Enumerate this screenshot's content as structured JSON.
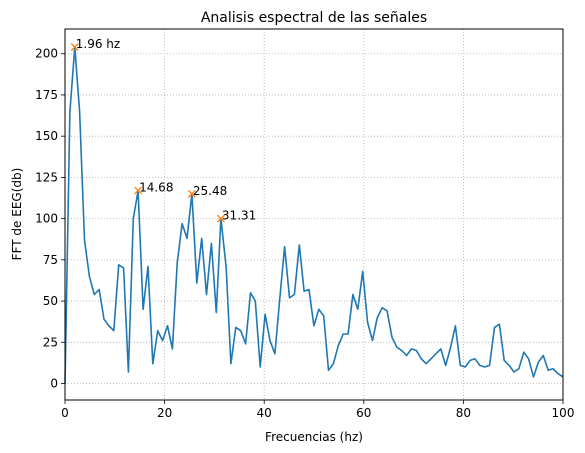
{
  "chart_data": {
    "type": "line",
    "title": "Analisis espectral de las señales",
    "xlabel": "Frecuencias (hz)",
    "ylabel": "FFT de EEG(db)",
    "xlim": [
      0,
      100
    ],
    "ylim": [
      -10,
      215
    ],
    "xticks": [
      "0",
      "20",
      "40",
      "60",
      "80",
      "100"
    ],
    "yticks": [
      "0",
      "25",
      "50",
      "75",
      "100",
      "125",
      "150",
      "175",
      "200"
    ],
    "grid": true,
    "line_color": "#1f77b4",
    "marker_color": "#ff7f0e",
    "series": [
      {
        "x": [
          0,
          0.98,
          1.96,
          2.94,
          3.92,
          4.9,
          5.88,
          6.86,
          7.84,
          8.82,
          9.8,
          10.78,
          11.76,
          12.74,
          13.72,
          14.68,
          15.68,
          16.66,
          17.64,
          18.62,
          19.6,
          20.58,
          21.56,
          22.54,
          23.52,
          24.5,
          25.48,
          26.46,
          27.44,
          28.42,
          29.4,
          30.38,
          31.31,
          32.34,
          33.32,
          34.3,
          35.28,
          36.26,
          37.24,
          38.22,
          39.2,
          40.18,
          41.16,
          42.14,
          43.12,
          44.1,
          45.08,
          46.06,
          47.04,
          48.02,
          49.0,
          49.98,
          50.96,
          51.94,
          52.92,
          53.9,
          54.88,
          55.86,
          56.84,
          57.82,
          58.8,
          59.78,
          60.76,
          61.74,
          62.72,
          63.7,
          64.68,
          65.66,
          66.64,
          67.62,
          68.6,
          69.58,
          70.56,
          71.54,
          72.52,
          73.5,
          74.48,
          75.46,
          76.44,
          77.42,
          78.4,
          79.38,
          80.36,
          81.34,
          82.32,
          83.3,
          84.28,
          85.26,
          86.24,
          87.22,
          88.2,
          89.18,
          90.16,
          91.14,
          92.12,
          93.1,
          94.08,
          95.06,
          96.04,
          97.02,
          98.0,
          98.98,
          100
        ],
        "y": [
          0,
          165,
          204,
          165,
          87,
          65,
          54,
          57,
          39,
          35,
          32,
          72,
          70,
          7,
          100,
          117,
          45,
          71,
          12,
          32,
          26,
          35,
          21,
          73,
          97,
          88,
          115,
          61,
          88,
          54,
          85,
          43,
          100,
          71,
          12,
          34,
          32,
          24,
          55,
          50,
          10,
          42,
          26,
          18,
          51,
          83,
          52,
          54,
          84,
          56,
          57,
          35,
          45,
          41,
          8,
          12,
          23,
          30,
          30,
          54,
          45,
          68,
          37,
          26,
          40,
          46,
          44,
          28,
          22,
          20,
          17,
          21,
          20,
          15,
          12,
          15,
          18,
          21,
          11,
          22,
          35,
          11,
          10,
          14,
          15,
          11,
          10,
          11,
          34,
          36,
          14,
          11,
          7,
          9,
          19,
          15,
          4,
          13,
          17,
          8,
          9,
          6,
          4
        ]
      }
    ],
    "peaks": [
      {
        "x": 1.96,
        "y": 204,
        "label": "1.96 hz"
      },
      {
        "x": 14.68,
        "y": 117,
        "label": "14.68"
      },
      {
        "x": 25.48,
        "y": 115,
        "label": "25.48"
      },
      {
        "x": 31.31,
        "y": 100,
        "label": "31.31"
      }
    ]
  }
}
